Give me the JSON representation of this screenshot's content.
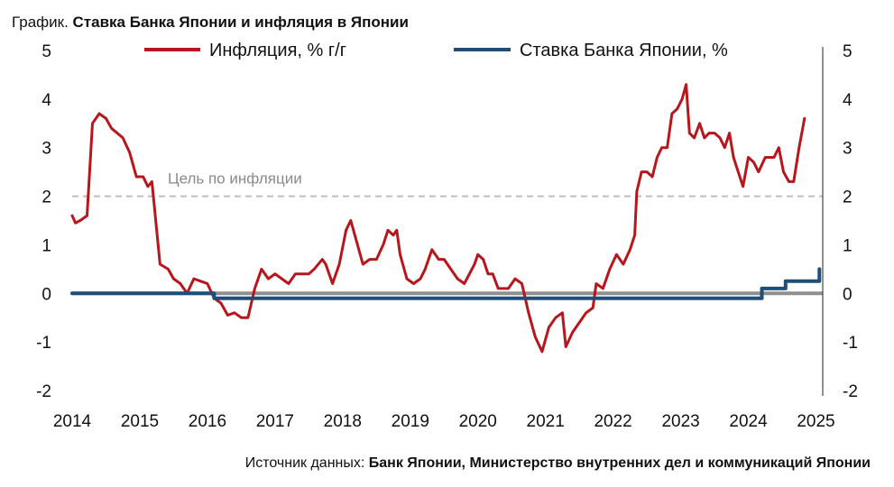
{
  "header": {
    "prefix": "График. ",
    "title": "Ставка Банка Японии и инфляция в Японии"
  },
  "source": {
    "label": "Источник данных: ",
    "value": "Банк Японии, Министерство внутренних дел и коммуникаций Японии"
  },
  "colors": {
    "inflation": "#b8161c",
    "rate": "#1f4e79",
    "target": "#bdbdbd",
    "zero": "#8f8f8f",
    "axis": "#222222"
  },
  "chart_data": {
    "type": "line",
    "xlim": [
      2014,
      2025.1
    ],
    "ylim": [
      -2,
      5
    ],
    "yticks": [
      -2,
      -1,
      0,
      1,
      2,
      3,
      4,
      5
    ],
    "xticks": [
      2014,
      2015,
      2016,
      2017,
      2018,
      2019,
      2020,
      2021,
      2022,
      2023,
      2024,
      2025
    ],
    "legend_position": "top",
    "annotation": {
      "text": "Цель по инфляции",
      "value": 2
    },
    "series": [
      {
        "name": "Инфляция, % г/г",
        "points": [
          [
            2014.0,
            1.6
          ],
          [
            2014.05,
            1.45
          ],
          [
            2014.12,
            1.5
          ],
          [
            2014.22,
            1.6
          ],
          [
            2014.3,
            3.5
          ],
          [
            2014.4,
            3.7
          ],
          [
            2014.5,
            3.6
          ],
          [
            2014.58,
            3.4
          ],
          [
            2014.75,
            3.2
          ],
          [
            2014.85,
            2.9
          ],
          [
            2014.95,
            2.4
          ],
          [
            2015.05,
            2.4
          ],
          [
            2015.12,
            2.2
          ],
          [
            2015.18,
            2.3
          ],
          [
            2015.3,
            0.6
          ],
          [
            2015.42,
            0.5
          ],
          [
            2015.5,
            0.3
          ],
          [
            2015.6,
            0.2
          ],
          [
            2015.7,
            0.0
          ],
          [
            2015.8,
            0.3
          ],
          [
            2015.9,
            0.25
          ],
          [
            2016.0,
            0.2
          ],
          [
            2016.1,
            -0.1
          ],
          [
            2016.2,
            -0.2
          ],
          [
            2016.3,
            -0.45
          ],
          [
            2016.4,
            -0.4
          ],
          [
            2016.5,
            -0.5
          ],
          [
            2016.6,
            -0.5
          ],
          [
            2016.7,
            0.1
          ],
          [
            2016.8,
            0.5
          ],
          [
            2016.9,
            0.3
          ],
          [
            2017.0,
            0.4
          ],
          [
            2017.1,
            0.3
          ],
          [
            2017.2,
            0.2
          ],
          [
            2017.3,
            0.4
          ],
          [
            2017.42,
            0.4
          ],
          [
            2017.5,
            0.4
          ],
          [
            2017.58,
            0.5
          ],
          [
            2017.7,
            0.7
          ],
          [
            2017.75,
            0.6
          ],
          [
            2017.85,
            0.2
          ],
          [
            2017.95,
            0.6
          ],
          [
            2018.05,
            1.3
          ],
          [
            2018.12,
            1.5
          ],
          [
            2018.2,
            1.1
          ],
          [
            2018.3,
            0.6
          ],
          [
            2018.4,
            0.7
          ],
          [
            2018.5,
            0.7
          ],
          [
            2018.6,
            1.0
          ],
          [
            2018.67,
            1.3
          ],
          [
            2018.75,
            1.2
          ],
          [
            2018.8,
            1.3
          ],
          [
            2018.85,
            0.8
          ],
          [
            2018.95,
            0.3
          ],
          [
            2019.05,
            0.2
          ],
          [
            2019.15,
            0.3
          ],
          [
            2019.22,
            0.5
          ],
          [
            2019.32,
            0.9
          ],
          [
            2019.42,
            0.7
          ],
          [
            2019.5,
            0.7
          ],
          [
            2019.6,
            0.5
          ],
          [
            2019.7,
            0.3
          ],
          [
            2019.8,
            0.2
          ],
          [
            2019.95,
            0.6
          ],
          [
            2020.0,
            0.8
          ],
          [
            2020.08,
            0.7
          ],
          [
            2020.15,
            0.4
          ],
          [
            2020.22,
            0.4
          ],
          [
            2020.3,
            0.1
          ],
          [
            2020.4,
            0.1
          ],
          [
            2020.45,
            0.1
          ],
          [
            2020.55,
            0.3
          ],
          [
            2020.65,
            0.2
          ],
          [
            2020.75,
            -0.4
          ],
          [
            2020.85,
            -0.9
          ],
          [
            2020.95,
            -1.2
          ],
          [
            2021.05,
            -0.7
          ],
          [
            2021.15,
            -0.5
          ],
          [
            2021.25,
            -0.4
          ],
          [
            2021.3,
            -1.1
          ],
          [
            2021.4,
            -0.8
          ],
          [
            2021.5,
            -0.6
          ],
          [
            2021.6,
            -0.4
          ],
          [
            2021.7,
            -0.3
          ],
          [
            2021.75,
            0.2
          ],
          [
            2021.85,
            0.1
          ],
          [
            2021.95,
            0.5
          ],
          [
            2022.05,
            0.8
          ],
          [
            2022.15,
            0.6
          ],
          [
            2022.25,
            0.9
          ],
          [
            2022.32,
            1.2
          ],
          [
            2022.35,
            2.1
          ],
          [
            2022.42,
            2.5
          ],
          [
            2022.5,
            2.5
          ],
          [
            2022.58,
            2.4
          ],
          [
            2022.65,
            2.8
          ],
          [
            2022.72,
            3.0
          ],
          [
            2022.8,
            3.0
          ],
          [
            2022.87,
            3.7
          ],
          [
            2022.95,
            3.8
          ],
          [
            2023.02,
            4.0
          ],
          [
            2023.08,
            4.3
          ],
          [
            2023.13,
            3.3
          ],
          [
            2023.2,
            3.2
          ],
          [
            2023.28,
            3.5
          ],
          [
            2023.35,
            3.2
          ],
          [
            2023.42,
            3.3
          ],
          [
            2023.5,
            3.3
          ],
          [
            2023.58,
            3.2
          ],
          [
            2023.65,
            3.0
          ],
          [
            2023.72,
            3.3
          ],
          [
            2023.78,
            2.8
          ],
          [
            2023.85,
            2.5
          ],
          [
            2023.92,
            2.2
          ],
          [
            2024.0,
            2.8
          ],
          [
            2024.08,
            2.7
          ],
          [
            2024.15,
            2.5
          ],
          [
            2024.25,
            2.8
          ],
          [
            2024.38,
            2.8
          ],
          [
            2024.45,
            3.0
          ],
          [
            2024.52,
            2.5
          ],
          [
            2024.6,
            2.3
          ],
          [
            2024.67,
            2.3
          ],
          [
            2024.75,
            3.0
          ],
          [
            2024.83,
            3.6
          ]
        ]
      },
      {
        "name": "Ставка Банка Японии, %",
        "points": [
          [
            2014.0,
            0.0
          ],
          [
            2016.1,
            0.0
          ],
          [
            2016.1,
            -0.1
          ],
          [
            2024.2,
            -0.1
          ],
          [
            2024.2,
            0.1
          ],
          [
            2024.55,
            0.1
          ],
          [
            2024.55,
            0.25
          ],
          [
            2025.05,
            0.25
          ],
          [
            2025.05,
            0.5
          ]
        ]
      }
    ]
  }
}
